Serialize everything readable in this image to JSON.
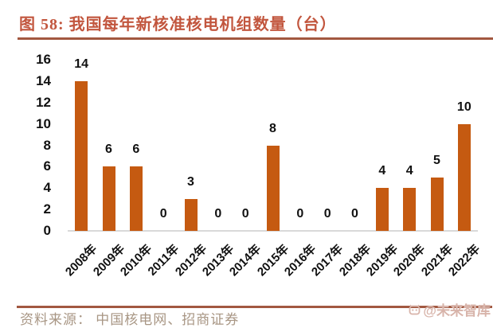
{
  "title": {
    "label": "图 58:  我国每年新核准核电机组数量（台）"
  },
  "source": {
    "label": "资料来源：  中国核电网、招商证券"
  },
  "watermark": {
    "label": "@未来智库",
    "icon": "mascot-face-icon"
  },
  "colors": {
    "bar": "#C55A11",
    "title": "#C2563E",
    "rule": "#A25840",
    "source_text": "#A89684",
    "axis_line": "#D9D9D9",
    "watermark": "#D8B4AA"
  },
  "chart_data": {
    "type": "bar",
    "title": "我国每年新核准核电机组数量（台）",
    "categories": [
      "2008年",
      "2009年",
      "2010年",
      "2011年",
      "2012年",
      "2013年",
      "2014年",
      "2015年",
      "2016年",
      "2017年",
      "2018年",
      "2019年",
      "2020年",
      "2021年",
      "2022年"
    ],
    "values": [
      14,
      6,
      6,
      0,
      3,
      0,
      0,
      8,
      0,
      0,
      0,
      4,
      4,
      5,
      10
    ],
    "xlabel": "",
    "ylabel": "",
    "ylim": [
      0,
      16
    ],
    "yticks": [
      0,
      2,
      4,
      6,
      8,
      10,
      12,
      14,
      16
    ],
    "grid": false,
    "legend": "none",
    "data_labels": true,
    "bar_color": "#C55A11"
  }
}
